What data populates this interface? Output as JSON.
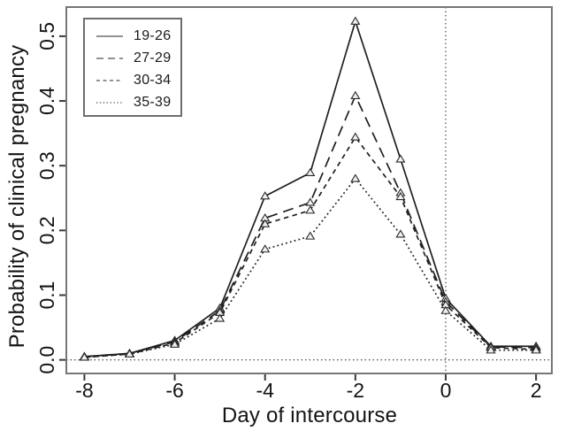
{
  "chart_data": {
    "type": "line",
    "title": "",
    "xlabel": "Day of intercourse",
    "ylabel": "Probability of clinical pregnancy",
    "x": [
      -8,
      -7,
      -6,
      -5,
      -4,
      -3,
      -2,
      -1,
      0,
      1,
      2
    ],
    "x_ticks": [
      -8,
      -6,
      -4,
      -2,
      0,
      2
    ],
    "x_tick_labels": [
      "-8",
      "-6",
      "-4",
      "-2",
      "0",
      "2"
    ],
    "y_ticks": [
      0.0,
      0.1,
      0.2,
      0.3,
      0.4,
      0.5
    ],
    "y_tick_labels": [
      "0.0",
      "0.1",
      "0.2",
      "0.3",
      "0.4",
      "0.5"
    ],
    "xlim": [
      -8.4,
      2.35
    ],
    "ylim": [
      -0.021,
      0.545
    ],
    "grid": false,
    "marker": "triangle-up-open",
    "legend_position": "top-left",
    "reference_lines": [
      {
        "orientation": "vertical",
        "x": 0,
        "style": "dotted"
      },
      {
        "orientation": "horizontal",
        "y": 0,
        "style": "dotted"
      }
    ],
    "series": [
      {
        "name": "19-26",
        "line_style": "solid",
        "values": [
          0.005,
          0.01,
          0.03,
          0.08,
          0.253,
          0.289,
          0.523,
          0.31,
          0.095,
          0.021,
          0.021
        ]
      },
      {
        "name": "27-29",
        "line_style": "longdash",
        "values": [
          0.005,
          0.01,
          0.028,
          0.076,
          0.219,
          0.243,
          0.408,
          0.258,
          0.09,
          0.02,
          0.019
        ]
      },
      {
        "name": "30-34",
        "line_style": "dash",
        "values": [
          0.004,
          0.009,
          0.026,
          0.073,
          0.21,
          0.231,
          0.344,
          0.252,
          0.085,
          0.019,
          0.016
        ]
      },
      {
        "name": "35-39",
        "line_style": "dotted",
        "values": [
          0.004,
          0.009,
          0.024,
          0.064,
          0.171,
          0.191,
          0.28,
          0.194,
          0.076,
          0.015,
          0.015
        ]
      }
    ]
  },
  "colors": {
    "background": "#ffffff",
    "line": "#1f1f1f",
    "frame": "#767676",
    "tick": "#3a3a3a",
    "text": "#141414",
    "marker_fill": "#f0f0f0",
    "marker_stroke": "#2b2b2b",
    "reference": "#4a4a4a",
    "legend_sample": "#6f6f6f"
  }
}
